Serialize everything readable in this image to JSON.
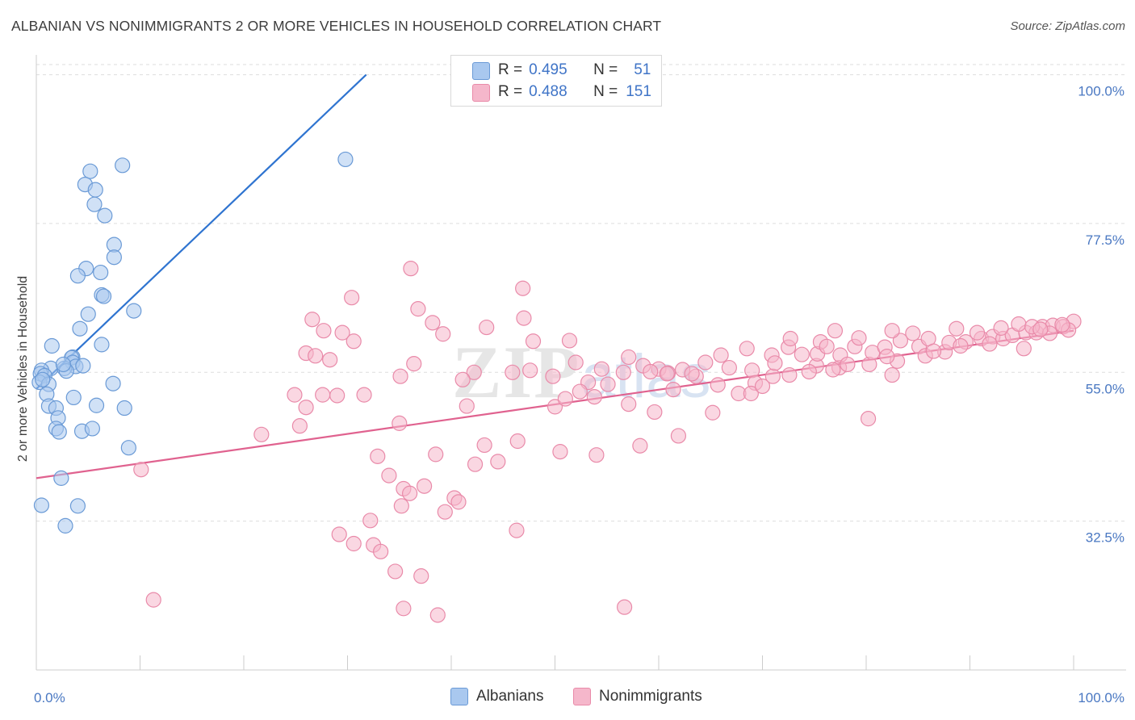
{
  "title": "ALBANIAN VS NONIMMIGRANTS 2 OR MORE VEHICLES IN HOUSEHOLD CORRELATION CHART",
  "source": "Source: ZipAtlas.com",
  "legend": {
    "r_label": "R =",
    "n_label": "N =",
    "rows": [
      {
        "r": "0.495",
        "n": "51"
      },
      {
        "r": "0.488",
        "n": "151"
      }
    ]
  },
  "bottom_legend": [
    "Albanians",
    "Nonimmigrants"
  ],
  "colors": {
    "albanians_fill": "#a9c8ef",
    "albanians_stroke": "#6a9ad6",
    "albanians_line": "#2f74d0",
    "nonimmigrants_fill": "#f5b7cb",
    "nonimmigrants_stroke": "#e98aa9",
    "nonimmigrants_line": "#e0628f",
    "tick_text": "#4a78c2"
  },
  "chart_data": {
    "type": "scatter",
    "title": "ALBANIAN VS NONIMMIGRANTS 2 OR MORE VEHICLES IN HOUSEHOLD CORRELATION CHART",
    "xlabel": "",
    "ylabel": "2 or more Vehicles in Household",
    "xlim": [
      0,
      100
    ],
    "ylim": [
      10,
      103
    ],
    "x_tick_labels": [
      "0.0%",
      "100.0%"
    ],
    "y_tick_labels": [
      "100.0%",
      "77.5%",
      "55.0%",
      "32.5%"
    ],
    "y_ticks": [
      100,
      77.5,
      55,
      32.5
    ],
    "grid": "horizontal dashed",
    "legend_position": "top-center",
    "series": [
      {
        "name": "Albanians",
        "r": 0.495,
        "n": 51,
        "trend": {
          "x0": 0,
          "y0": 52.5,
          "x1": 31.8,
          "y1": 100
        },
        "points": [
          [
            8.3,
            86.3
          ],
          [
            5.2,
            85.4
          ],
          [
            29.8,
            87.2
          ],
          [
            4.7,
            83.4
          ],
          [
            5.7,
            82.6
          ],
          [
            5.6,
            80.4
          ],
          [
            6.6,
            78.7
          ],
          [
            7.5,
            74.3
          ],
          [
            7.5,
            72.4
          ],
          [
            4.8,
            70.7
          ],
          [
            4.0,
            69.6
          ],
          [
            6.2,
            70.1
          ],
          [
            6.3,
            66.7
          ],
          [
            6.5,
            66.5
          ],
          [
            9.4,
            64.3
          ],
          [
            5.0,
            63.8
          ],
          [
            4.2,
            61.6
          ],
          [
            1.5,
            59.0
          ],
          [
            6.3,
            59.2
          ],
          [
            3.5,
            57.3
          ],
          [
            3.4,
            57.2
          ],
          [
            3.5,
            56.5
          ],
          [
            3.8,
            55.9
          ],
          [
            4.5,
            56.0
          ],
          [
            1.4,
            55.6
          ],
          [
            2.7,
            55.6
          ],
          [
            2.9,
            55.2
          ],
          [
            0.5,
            55.3
          ],
          [
            0.4,
            54.8
          ],
          [
            0.8,
            54.5
          ],
          [
            0.3,
            53.5
          ],
          [
            1.2,
            53.2
          ],
          [
            7.4,
            53.3
          ],
          [
            1.0,
            51.7
          ],
          [
            3.6,
            51.2
          ],
          [
            1.2,
            49.9
          ],
          [
            1.9,
            49.6
          ],
          [
            5.8,
            50.0
          ],
          [
            8.5,
            49.6
          ],
          [
            2.1,
            48.1
          ],
          [
            1.9,
            46.5
          ],
          [
            2.2,
            46.0
          ],
          [
            4.4,
            46.1
          ],
          [
            5.4,
            46.5
          ],
          [
            8.9,
            43.6
          ],
          [
            2.4,
            39.0
          ],
          [
            0.5,
            34.9
          ],
          [
            4.0,
            34.8
          ],
          [
            2.8,
            31.8
          ],
          [
            0.6,
            53.9
          ],
          [
            2.6,
            56.2
          ]
        ]
      },
      {
        "name": "Nonimmigrants",
        "r": 0.488,
        "n": 151,
        "trend": {
          "x0": 0,
          "y0": 39.0,
          "x1": 100,
          "y1": 61.3
        },
        "points": [
          [
            36.1,
            70.7
          ],
          [
            46.9,
            67.7
          ],
          [
            30.4,
            66.3
          ],
          [
            36.8,
            64.6
          ],
          [
            26.6,
            63.0
          ],
          [
            38.2,
            62.5
          ],
          [
            47.0,
            63.2
          ],
          [
            43.4,
            61.8
          ],
          [
            27.7,
            61.3
          ],
          [
            29.5,
            61.0
          ],
          [
            39.2,
            60.8
          ],
          [
            51.4,
            59.8
          ],
          [
            47.9,
            59.7
          ],
          [
            30.6,
            59.7
          ],
          [
            26.0,
            57.9
          ],
          [
            26.9,
            57.5
          ],
          [
            28.3,
            56.9
          ],
          [
            52.0,
            56.5
          ],
          [
            54.5,
            55.5
          ],
          [
            58.5,
            56.0
          ],
          [
            60.0,
            55.5
          ],
          [
            62.3,
            55.4
          ],
          [
            56.6,
            55.0
          ],
          [
            59.2,
            55.1
          ],
          [
            60.9,
            54.9
          ],
          [
            45.9,
            55.0
          ],
          [
            42.2,
            55.0
          ],
          [
            35.1,
            54.4
          ],
          [
            49.8,
            54.4
          ],
          [
            63.6,
            54.4
          ],
          [
            60.8,
            54.8
          ],
          [
            66.8,
            55.7
          ],
          [
            69.0,
            55.3
          ],
          [
            71.0,
            54.4
          ],
          [
            72.6,
            54.6
          ],
          [
            75.2,
            56.0
          ],
          [
            77.4,
            55.7
          ],
          [
            80.3,
            56.2
          ],
          [
            74.5,
            55.1
          ],
          [
            70.9,
            57.6
          ],
          [
            72.5,
            58.8
          ],
          [
            75.3,
            57.8
          ],
          [
            77.5,
            57.6
          ],
          [
            78.9,
            58.9
          ],
          [
            80.6,
            58.0
          ],
          [
            81.8,
            58.8
          ],
          [
            83.3,
            59.8
          ],
          [
            85.1,
            58.9
          ],
          [
            87.6,
            58.1
          ],
          [
            88.0,
            59.5
          ],
          [
            89.6,
            59.6
          ],
          [
            91.1,
            60.1
          ],
          [
            92.2,
            60.4
          ],
          [
            93.2,
            60.1
          ],
          [
            94.1,
            60.6
          ],
          [
            95.4,
            61.0
          ],
          [
            96.4,
            61.0
          ],
          [
            97.0,
            61.9
          ],
          [
            98.0,
            62.1
          ],
          [
            99.0,
            61.9
          ],
          [
            100.0,
            62.7
          ],
          [
            72.7,
            60.1
          ],
          [
            75.6,
            59.6
          ],
          [
            77.0,
            61.3
          ],
          [
            79.3,
            60.2
          ],
          [
            82.5,
            61.3
          ],
          [
            84.5,
            60.9
          ],
          [
            86.0,
            60.1
          ],
          [
            88.7,
            61.6
          ],
          [
            90.7,
            61.0
          ],
          [
            93.0,
            61.7
          ],
          [
            94.7,
            62.3
          ],
          [
            96.0,
            61.9
          ],
          [
            99.5,
            61.4
          ],
          [
            73.8,
            57.7
          ],
          [
            76.2,
            58.9
          ],
          [
            68.5,
            58.6
          ],
          [
            66.0,
            57.6
          ],
          [
            64.5,
            56.5
          ],
          [
            63.2,
            54.8
          ],
          [
            65.7,
            53.1
          ],
          [
            67.7,
            51.8
          ],
          [
            69.3,
            53.4
          ],
          [
            71.2,
            56.4
          ],
          [
            53.2,
            53.5
          ],
          [
            55.1,
            53.2
          ],
          [
            57.1,
            57.3
          ],
          [
            61.4,
            52.4
          ],
          [
            65.2,
            48.9
          ],
          [
            68.9,
            51.8
          ],
          [
            70.0,
            52.9
          ],
          [
            76.8,
            55.4
          ],
          [
            78.2,
            56.2
          ],
          [
            85.7,
            57.5
          ],
          [
            83.0,
            56.7
          ],
          [
            91.9,
            59.3
          ],
          [
            95.2,
            58.6
          ],
          [
            97.7,
            60.9
          ],
          [
            89.1,
            59.0
          ],
          [
            82.5,
            54.6
          ],
          [
            80.2,
            48.0
          ],
          [
            82.0,
            57.4
          ],
          [
            86.5,
            58.2
          ],
          [
            96.8,
            61.5
          ],
          [
            98.9,
            62.2
          ],
          [
            47.6,
            55.3
          ],
          [
            50.0,
            49.8
          ],
          [
            51.0,
            51.0
          ],
          [
            52.4,
            52.1
          ],
          [
            53.8,
            51.3
          ],
          [
            57.1,
            50.2
          ],
          [
            59.6,
            49.0
          ],
          [
            61.9,
            45.4
          ],
          [
            58.2,
            43.9
          ],
          [
            54.0,
            42.5
          ],
          [
            50.5,
            43.0
          ],
          [
            46.4,
            44.6
          ],
          [
            43.2,
            44.0
          ],
          [
            38.5,
            42.6
          ],
          [
            35.0,
            47.3
          ],
          [
            32.9,
            42.3
          ],
          [
            29.0,
            51.5
          ],
          [
            31.6,
            51.6
          ],
          [
            27.6,
            51.6
          ],
          [
            26.0,
            49.7
          ],
          [
            24.9,
            51.6
          ],
          [
            25.4,
            46.9
          ],
          [
            36.4,
            56.3
          ],
          [
            41.1,
            53.9
          ],
          [
            41.5,
            49.9
          ],
          [
            44.5,
            41.5
          ],
          [
            42.3,
            41.1
          ],
          [
            10.1,
            40.3
          ],
          [
            21.7,
            45.6
          ],
          [
            34.0,
            39.4
          ],
          [
            35.4,
            37.4
          ],
          [
            37.4,
            37.8
          ],
          [
            36.0,
            36.7
          ],
          [
            40.3,
            36.0
          ],
          [
            40.7,
            35.4
          ],
          [
            39.4,
            33.9
          ],
          [
            35.2,
            34.8
          ],
          [
            32.2,
            32.6
          ],
          [
            29.2,
            30.5
          ],
          [
            32.5,
            28.9
          ],
          [
            46.3,
            31.1
          ],
          [
            30.6,
            29.1
          ],
          [
            33.2,
            27.9
          ],
          [
            34.6,
            24.9
          ],
          [
            37.1,
            24.2
          ],
          [
            11.3,
            20.6
          ],
          [
            35.4,
            19.3
          ],
          [
            38.7,
            18.3
          ],
          [
            56.7,
            19.5
          ]
        ]
      }
    ]
  }
}
